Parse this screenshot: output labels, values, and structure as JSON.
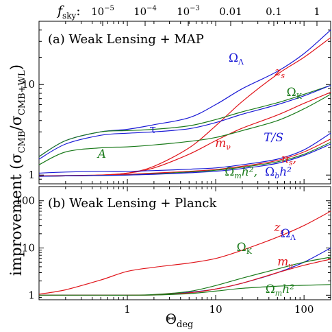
{
  "figure": {
    "top_axis_label": "f",
    "top_axis_label_sub": "sky",
    "top_axis_label_colon": ":",
    "top_ticks": [
      {
        "base": "10",
        "exp": "−5",
        "value": 1e-05
      },
      {
        "base": "10",
        "exp": "−4",
        "value": 0.0001
      },
      {
        "base": "10",
        "exp": "−3",
        "value": 0.001
      },
      {
        "text": "0.01",
        "value": 0.01
      },
      {
        "text": "0.1",
        "value": 0.1
      },
      {
        "text": "1",
        "value": 1
      }
    ],
    "ylabel_text": "improvement",
    "ylabel_ratio": "(σ",
    "ylabel_sub1": "CMB",
    "ylabel_mid": "/σ",
    "ylabel_sub2": "CMB+WL",
    "ylabel_close": ")",
    "xlabel": "Θ",
    "xlabel_sub": "deg"
  },
  "colors": {
    "blue": "#1a1ad6",
    "red": "#e0141a",
    "green": "#1a7a1a"
  },
  "chart_data": [
    {
      "type": "line",
      "title": "(a) Weak Lensing + MAP",
      "xscale": "log",
      "yscale": "log",
      "xlim": [
        0.1,
        200
      ],
      "ylim": [
        0.8,
        50
      ],
      "x_ticks": [
        1,
        10,
        100
      ],
      "x_tick_labels": [
        "1",
        "10",
        "100"
      ],
      "y_ticks": [
        1,
        10
      ],
      "y_tick_labels": [
        "1",
        "10"
      ],
      "x": [
        0.1,
        0.2,
        0.5,
        1,
        2,
        5,
        10,
        20,
        50,
        100,
        200
      ],
      "series": [
        {
          "name": "Ω_Λ",
          "color": "blue",
          "values": [
            1.6,
            2.4,
            3.0,
            3.2,
            3.6,
            4.3,
            6.0,
            9.0,
            14,
            22,
            40
          ]
        },
        {
          "name": "z_s",
          "color": "red",
          "values": [
            0.97,
            0.98,
            1.0,
            1.05,
            1.25,
            2.0,
            3.5,
            6.5,
            13,
            20,
            33
          ]
        },
        {
          "name": "Ω_K",
          "color": "green",
          "values": [
            1.6,
            2.4,
            3.0,
            3.1,
            3.2,
            3.5,
            4.1,
            5.0,
            6.3,
            7.8,
            9.8
          ]
        },
        {
          "name": "τ",
          "color": "blue",
          "values": [
            1.5,
            2.2,
            2.75,
            2.9,
            3.0,
            3.25,
            3.8,
            4.7,
            6.0,
            7.5,
            9.8
          ]
        },
        {
          "name": "m_ν",
          "color": "red",
          "values": [
            0.97,
            0.98,
            1.0,
            1.05,
            1.2,
            1.7,
            2.4,
            3.3,
            4.6,
            6.2,
            8.2
          ]
        },
        {
          "name": "A",
          "color": "green",
          "values": [
            1.3,
            1.8,
            2.0,
            2.05,
            2.15,
            2.35,
            2.6,
            3.1,
            4.0,
            5.4,
            7.8
          ]
        },
        {
          "name": "T/S",
          "color": "blue",
          "values": [
            1.05,
            1.08,
            1.1,
            1.1,
            1.12,
            1.16,
            1.2,
            1.3,
            1.5,
            1.9,
            2.9
          ]
        },
        {
          "name": "n_s",
          "color": "red",
          "values": [
            0.98,
            0.99,
            1.0,
            1.02,
            1.05,
            1.1,
            1.15,
            1.25,
            1.45,
            1.8,
            2.5
          ]
        },
        {
          "name": "Ω_m h^2",
          "color": "green",
          "values": [
            0.97,
            0.98,
            0.99,
            1.0,
            1.03,
            1.08,
            1.13,
            1.22,
            1.4,
            1.7,
            2.3
          ]
        },
        {
          "name": "Ω_b h^2",
          "color": "blue",
          "values": [
            0.97,
            0.98,
            0.99,
            1.0,
            1.02,
            1.06,
            1.1,
            1.18,
            1.35,
            1.65,
            2.2
          ]
        }
      ],
      "labels": [
        {
          "series": 0,
          "base": "Ω",
          "sub": "Λ",
          "color": "blue"
        },
        {
          "series": 1,
          "base": "z",
          "sub": "s",
          "color": "red"
        },
        {
          "series": 2,
          "base": "Ω",
          "sub": "K",
          "color": "green"
        },
        {
          "series": 3,
          "base": "τ",
          "color": "blue"
        },
        {
          "series": 4,
          "base": "m",
          "sub": "ν",
          "color": "red"
        },
        {
          "series": 5,
          "base": "A",
          "color": "green"
        },
        {
          "series": 6,
          "base": "T/S",
          "color": "blue"
        },
        {
          "series": 7,
          "base": "n",
          "sub": "s",
          "tail": ",",
          "color": "red"
        },
        {
          "series": 8,
          "base": "Ω",
          "sub": "m",
          "tail": "h²,",
          "color": "green"
        },
        {
          "series": 9,
          "base": "Ω",
          "sub": "b",
          "tail": "h²",
          "color": "blue"
        }
      ]
    },
    {
      "type": "line",
      "title": "(b) Weak Lensing + Planck",
      "xscale": "log",
      "yscale": "log",
      "xlim": [
        0.1,
        200
      ],
      "ylim": [
        0.8,
        200
      ],
      "x_ticks": [
        1,
        10,
        100
      ],
      "x_tick_labels": [
        "1",
        "10",
        "100"
      ],
      "y_ticks": [
        1,
        10,
        100
      ],
      "y_tick_labels": [
        "1",
        "10",
        "100"
      ],
      "x": [
        0.1,
        0.2,
        0.5,
        1,
        2,
        5,
        10,
        20,
        50,
        100,
        200
      ],
      "series": [
        {
          "name": "z_s",
          "color": "red",
          "values": [
            1.05,
            1.3,
            2.1,
            3.2,
            3.9,
            4.8,
            6.0,
            9.0,
            17,
            30,
            60
          ]
        },
        {
          "name": "Ω_Λ",
          "color": "blue",
          "values": [
            1.0,
            1.0,
            1.0,
            1.0,
            1.02,
            1.15,
            1.35,
            1.8,
            3.0,
            5.0,
            10
          ]
        },
        {
          "name": "Ω_K",
          "color": "green",
          "values": [
            1.0,
            1.0,
            1.0,
            1.0,
            1.03,
            1.2,
            1.6,
            2.3,
            3.6,
            5.0,
            6.4
          ]
        },
        {
          "name": "m_ν",
          "color": "red",
          "values": [
            1.0,
            1.0,
            1.0,
            1.0,
            1.01,
            1.12,
            1.35,
            1.8,
            3.0,
            4.3,
            5.8
          ]
        },
        {
          "name": "Ω_m h^2",
          "color": "green",
          "values": [
            1.0,
            1.0,
            1.0,
            1.0,
            1.01,
            1.08,
            1.22,
            1.4,
            1.55,
            1.62,
            1.68
          ]
        }
      ],
      "labels": [
        {
          "series": 0,
          "base": "z",
          "sub": "s",
          "color": "red"
        },
        {
          "series": 1,
          "base": "Ω",
          "sub": "Λ",
          "color": "blue"
        },
        {
          "series": 2,
          "base": "Ω",
          "sub": "K",
          "color": "green"
        },
        {
          "series": 3,
          "base": "m",
          "sub": "ν",
          "color": "red"
        },
        {
          "series": 4,
          "base": "Ω",
          "sub": "m",
          "tail": "h²",
          "color": "green"
        }
      ]
    }
  ]
}
